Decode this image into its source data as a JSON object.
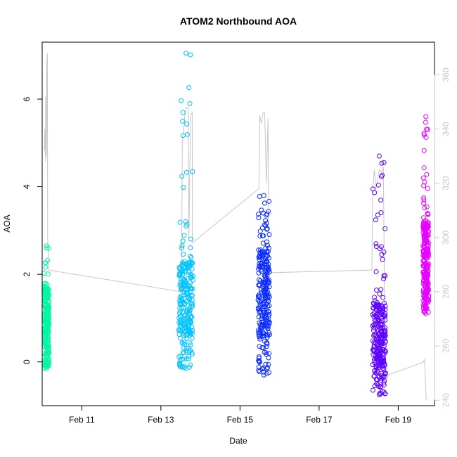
{
  "chart_data": {
    "type": "scatter",
    "title": "ATOM2 Northbound AOA",
    "xlabel": "Date",
    "ylabel": "AOA",
    "x_unit": "days",
    "x_ticks": [
      {
        "label": "Feb 11",
        "value": "2000-02-11"
      },
      {
        "label": "Feb 13",
        "value": "2000-02-13"
      },
      {
        "label": "Feb 15",
        "value": "2000-02-15"
      },
      {
        "label": "Feb 17",
        "value": "2000-02-17"
      },
      {
        "label": "Feb 19",
        "value": "2000-02-19"
      }
    ],
    "xlim": [
      "2000-02-10T00:00",
      "2000-02-19T22:00"
    ],
    "ylim": [
      -1.0,
      7.3
    ],
    "y_ticks": [
      0,
      2,
      4,
      6
    ],
    "y2lim": [
      238,
      372
    ],
    "y2_ticks": [
      240,
      260,
      280,
      300,
      320,
      340,
      360
    ],
    "grid": false,
    "legend": "none",
    "series": [
      {
        "color": "#00f5a6",
        "x_start": "2000-02-10T01:10",
        "x_end": "2000-02-10T04:10",
        "y_min": -0.15,
        "y_max": 2.65,
        "y_core_min": 0.3,
        "y_core_max": 1.7
      },
      {
        "color": "#00c3ff",
        "x_start": "2000-02-13T11:00",
        "x_end": "2000-02-13T19:30",
        "y_min": -0.15,
        "y_max": 7.05,
        "y_core_min": 0.6,
        "y_core_max": 2.3
      },
      {
        "color": "#0b2cff",
        "x_start": "2000-02-15T11:00",
        "x_end": "2000-02-15T18:00",
        "y_min": -0.3,
        "y_max": 3.8,
        "y_core_min": 0.6,
        "y_core_max": 2.5
      },
      {
        "color": "#5c00ff",
        "x_start": "2000-02-18T08:30",
        "x_end": "2000-02-18T16:20",
        "y_min": -0.75,
        "y_max": 4.7,
        "y_core_min": -0.1,
        "y_core_max": 1.3
      },
      {
        "color": "#e500ff",
        "x_start": "2000-02-19T15:00",
        "x_end": "2000-02-19T18:30",
        "y_min": 1.1,
        "y_max": 5.6,
        "y_core_min": 1.5,
        "y_core_max": 3.2
      }
    ],
    "secondary_series": {
      "color": "#c6c6c6",
      "axis": "right",
      "points": [
        {
          "x": "2000-02-10T01:20",
          "y": 332
        },
        {
          "x": "2000-02-10T01:40",
          "y": 340
        },
        {
          "x": "2000-02-10T02:00",
          "y": 328
        },
        {
          "x": "2000-02-10T02:10",
          "y": 352
        },
        {
          "x": "2000-02-10T02:30",
          "y": 330
        },
        {
          "x": "2000-02-10T02:50",
          "y": 365
        },
        {
          "x": "2000-02-10T03:10",
          "y": 368
        },
        {
          "x": "2000-02-10T03:20",
          "y": 300
        },
        {
          "x": "2000-02-10T04:00",
          "y": 288
        },
        {
          "x": "2000-02-13T12:30",
          "y": 280
        },
        {
          "x": "2000-02-13T13:00",
          "y": 335
        },
        {
          "x": "2000-02-13T13:30",
          "y": 338
        },
        {
          "x": "2000-02-13T14:30",
          "y": 345
        },
        {
          "x": "2000-02-13T15:30",
          "y": 348
        },
        {
          "x": "2000-02-13T16:30",
          "y": 348
        },
        {
          "x": "2000-02-13T17:00",
          "y": 300
        },
        {
          "x": "2000-02-13T18:00",
          "y": 345
        },
        {
          "x": "2000-02-13T19:00",
          "y": 346
        },
        {
          "x": "2000-02-13T19:10",
          "y": 298
        },
        {
          "x": "2000-02-15T11:30",
          "y": 318
        },
        {
          "x": "2000-02-15T12:00",
          "y": 345
        },
        {
          "x": "2000-02-15T13:00",
          "y": 342
        },
        {
          "x": "2000-02-15T14:00",
          "y": 346
        },
        {
          "x": "2000-02-15T15:00",
          "y": 346
        },
        {
          "x": "2000-02-15T16:00",
          "y": 320
        },
        {
          "x": "2000-02-15T17:00",
          "y": 344
        },
        {
          "x": "2000-02-15T17:30",
          "y": 290
        },
        {
          "x": "2000-02-15T18:00",
          "y": 287
        },
        {
          "x": "2000-02-18T08:00",
          "y": 288
        },
        {
          "x": "2000-02-18T08:30",
          "y": 317
        },
        {
          "x": "2000-02-18T09:30",
          "y": 325
        },
        {
          "x": "2000-02-18T10:30",
          "y": 318
        },
        {
          "x": "2000-02-18T12:30",
          "y": 325
        },
        {
          "x": "2000-02-18T14:00",
          "y": 324
        },
        {
          "x": "2000-02-18T15:00",
          "y": 326
        },
        {
          "x": "2000-02-18T16:00",
          "y": 255
        },
        {
          "x": "2000-02-18T16:20",
          "y": 249
        },
        {
          "x": "2000-02-19T15:00",
          "y": 254
        },
        {
          "x": "2000-02-19T16:00",
          "y": 255
        },
        {
          "x": "2000-02-19T17:00",
          "y": 240
        }
      ]
    }
  }
}
